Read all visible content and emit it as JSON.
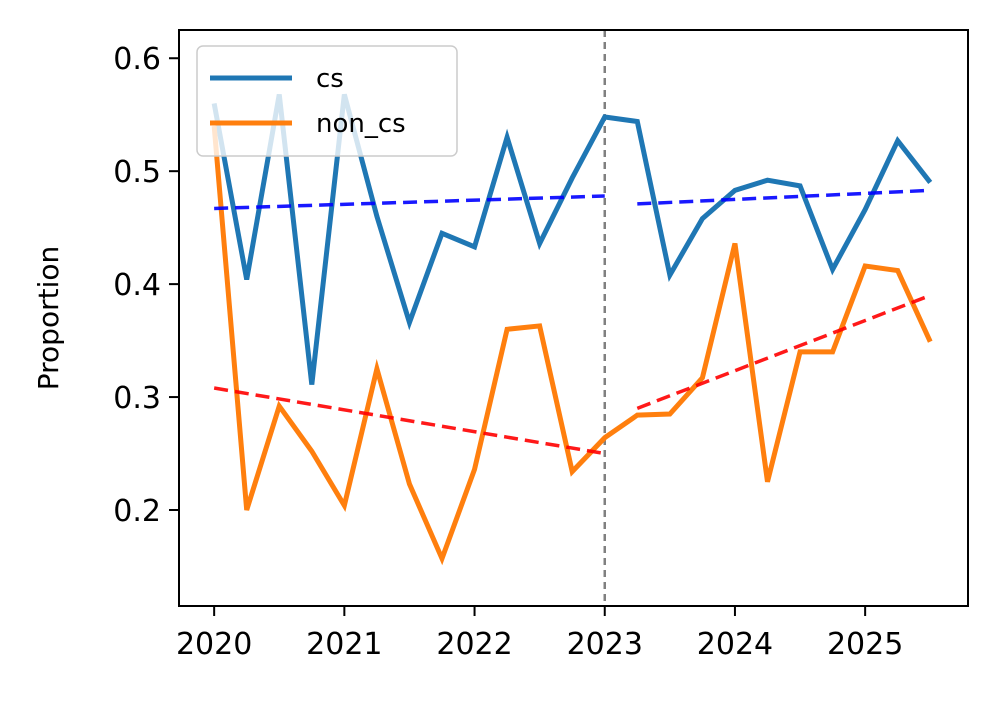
{
  "chart_data": {
    "type": "line",
    "title": "",
    "xlabel": "",
    "ylabel": "Proportion",
    "xlim": [
      2019.73,
      2025.79
    ],
    "ylim": [
      0.115,
      0.625
    ],
    "x_ticks": [
      2020,
      2021,
      2022,
      2023,
      2024,
      2025
    ],
    "y_ticks": [
      0.2,
      0.3,
      0.4,
      0.5,
      0.6
    ],
    "x_tick_labels": [
      "2020",
      "2021",
      "2022",
      "2023",
      "2024",
      "2025"
    ],
    "y_tick_labels": [
      "0.2",
      "0.3",
      "0.4",
      "0.5",
      "0.6"
    ],
    "grid": false,
    "legend_position": "top-left",
    "x": [
      2020.0,
      2020.25,
      2020.5,
      2020.75,
      2021.0,
      2021.25,
      2021.5,
      2021.75,
      2022.0,
      2022.25,
      2022.5,
      2022.75,
      2023.0,
      2023.25,
      2023.5,
      2023.75,
      2024.0,
      2024.25,
      2024.5,
      2024.75,
      2025.0,
      2025.25,
      2025.5
    ],
    "series": [
      {
        "name": "cs",
        "color": "#1f77b4",
        "values": [
          0.56,
          0.404,
          0.568,
          0.311,
          0.568,
          0.46,
          0.366,
          0.445,
          0.433,
          0.53,
          0.436,
          0.494,
          0.548,
          0.544,
          0.408,
          0.458,
          0.483,
          0.492,
          0.487,
          0.413,
          0.466,
          0.527,
          0.49
        ]
      },
      {
        "name": "non_cs",
        "color": "#ff7f0e",
        "values": [
          0.54,
          0.2,
          0.292,
          0.252,
          0.204,
          0.325,
          0.223,
          0.157,
          0.236,
          0.36,
          0.363,
          0.234,
          0.264,
          0.284,
          0.285,
          0.317,
          0.436,
          0.225,
          0.34,
          0.34,
          0.416,
          0.412,
          0.349
        ]
      }
    ],
    "trend_lines": [
      {
        "color": "#0000ff",
        "style": "dashed",
        "x": [
          2020.0,
          2023.0
        ],
        "y": [
          0.467,
          0.478
        ]
      },
      {
        "color": "#0000ff",
        "style": "dashed",
        "x": [
          2023.25,
          2025.5
        ],
        "y": [
          0.471,
          0.483
        ]
      },
      {
        "color": "#ff0000",
        "style": "dashed",
        "x": [
          2020.0,
          2023.0
        ],
        "y": [
          0.308,
          0.25
        ]
      },
      {
        "color": "#ff0000",
        "style": "dashed",
        "x": [
          2023.25,
          2025.5
        ],
        "y": [
          0.29,
          0.39
        ]
      }
    ],
    "vline": {
      "x": 2023.0,
      "color": "#808080",
      "style": "dashed"
    }
  }
}
